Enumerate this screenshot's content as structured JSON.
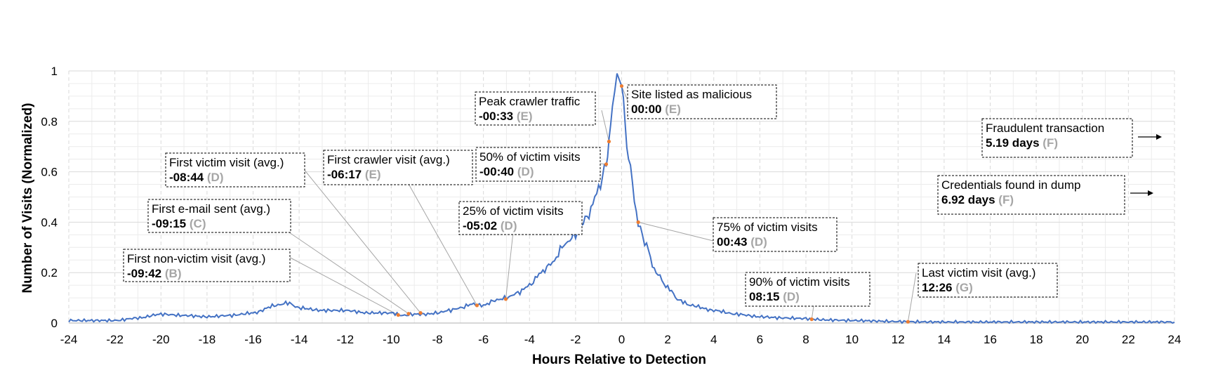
{
  "chart_data": {
    "type": "line",
    "title": "",
    "xlabel": "Hours Relative to Detection",
    "ylabel": "Number of Visits (Normalized)",
    "xlim": [
      -24,
      24
    ],
    "ylim": [
      0,
      1
    ],
    "x_ticks": [
      -24,
      -22,
      -20,
      -18,
      -16,
      -14,
      -12,
      -10,
      -8,
      -6,
      -4,
      -2,
      0,
      2,
      4,
      6,
      8,
      10,
      12,
      14,
      16,
      18,
      20,
      22,
      24
    ],
    "y_ticks": [
      0,
      0.2,
      0.4,
      0.6,
      0.8,
      1
    ],
    "y_tick_labels": [
      "0",
      "0.2",
      "0.4",
      "0.6",
      "0.8",
      "1"
    ],
    "grid": true,
    "line_color": "#4472c4",
    "marker_color": "#ed7d31",
    "series": [
      {
        "x": [
          -24,
          -23,
          -22,
          -21,
          -20,
          -19,
          -18,
          -17,
          -16,
          -15,
          -14.5,
          -14,
          -13,
          -12,
          -11,
          -10,
          -9.5,
          -9,
          -8.5,
          -8,
          -7.5,
          -7,
          -6.5,
          -6,
          -5.5,
          -5,
          -4.5,
          -4,
          -3.5,
          -3,
          -2.5,
          -2,
          -1.5,
          -1,
          -0.67,
          -0.55,
          -0.4,
          -0.2,
          0,
          0.3,
          0.72,
          1,
          1.5,
          2,
          2.5,
          3,
          4,
          5,
          6,
          7,
          8,
          8.25,
          9,
          10,
          12,
          12.43,
          14,
          16,
          18,
          20,
          22,
          24
        ],
        "y": [
          0.01,
          0.01,
          0.01,
          0.02,
          0.035,
          0.03,
          0.025,
          0.03,
          0.04,
          0.07,
          0.08,
          0.06,
          0.05,
          0.05,
          0.04,
          0.04,
          0.03,
          0.035,
          0.035,
          0.04,
          0.05,
          0.06,
          0.075,
          0.07,
          0.09,
          0.1,
          0.12,
          0.15,
          0.2,
          0.24,
          0.31,
          0.35,
          0.42,
          0.53,
          0.63,
          0.72,
          0.85,
          0.99,
          0.94,
          0.65,
          0.4,
          0.32,
          0.2,
          0.14,
          0.09,
          0.07,
          0.05,
          0.035,
          0.025,
          0.02,
          0.018,
          0.015,
          0.012,
          0.01,
          0.006,
          0.005,
          0.004,
          0.004,
          0.004,
          0.004,
          0.004,
          0.004
        ]
      }
    ],
    "markers": [
      {
        "x": -9.7,
        "y": 0.032
      },
      {
        "x": -9.25,
        "y": 0.037
      },
      {
        "x": -8.73,
        "y": 0.04
      },
      {
        "x": -6.28,
        "y": 0.07
      },
      {
        "x": -5.03,
        "y": 0.095
      },
      {
        "x": -0.67,
        "y": 0.63
      },
      {
        "x": -0.55,
        "y": 0.72
      },
      {
        "x": 0,
        "y": 0.94
      },
      {
        "x": 0.72,
        "y": 0.4
      },
      {
        "x": 8.25,
        "y": 0.015
      },
      {
        "x": 12.43,
        "y": 0.005
      }
    ],
    "annotations": [
      {
        "line1": "First non-victim visit (avg.)",
        "time": "-09:42",
        "phase": "(B)"
      },
      {
        "line1": "First e-mail sent (avg.)",
        "time": "-09:15",
        "phase": "(C)"
      },
      {
        "line1": "First victim visit (avg.)",
        "time": "-08:44",
        "phase": "(D)"
      },
      {
        "line1": "First crawler visit (avg.)",
        "time": "-06:17",
        "phase": "(E)"
      },
      {
        "line1": "25% of victim visits",
        "time": "-05:02",
        "phase": "(D)"
      },
      {
        "line1": "50% of victim visits",
        "time": "-00:40",
        "phase": "(D)"
      },
      {
        "line1": "Peak crawler traffic",
        "time": "-00:33",
        "phase": "(E)"
      },
      {
        "line1": "Site listed as malicious",
        "time": "00:00",
        "phase": "(E)"
      },
      {
        "line1": "75% of victim visits",
        "time": "00:43",
        "phase": "(D)"
      },
      {
        "line1": "90% of victim visits",
        "time": "08:15",
        "phase": "(D)"
      },
      {
        "line1": "Last victim visit (avg.)",
        "time": "12:26",
        "phase": "(G)"
      },
      {
        "line1": "Fraudulent  transaction",
        "time": "5.19 days",
        "phase": "(F)"
      },
      {
        "line1": "Credentials found in dump",
        "time": "6.92 days",
        "phase": "(F)"
      }
    ]
  }
}
